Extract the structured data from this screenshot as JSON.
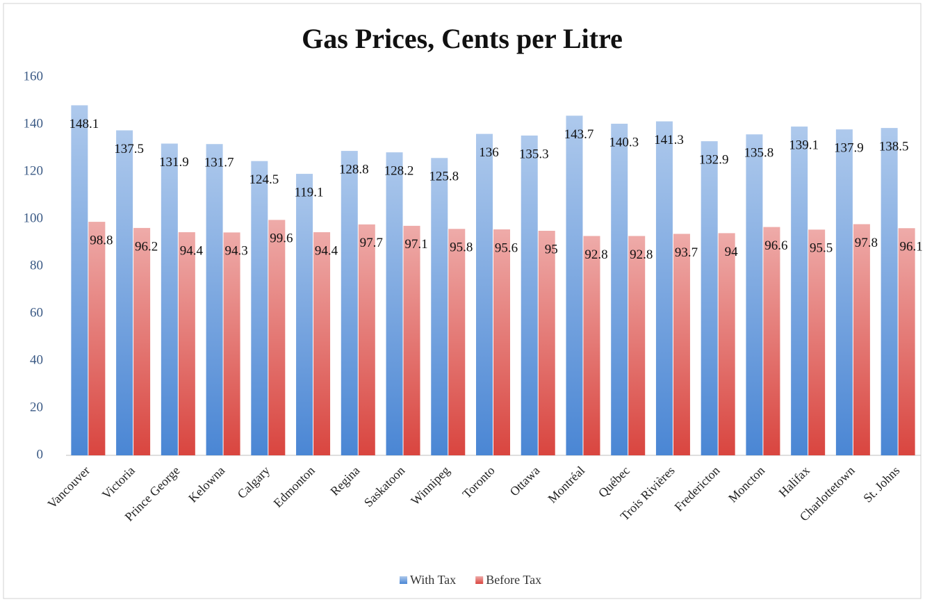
{
  "chart_data": {
    "type": "bar",
    "title": "Gas Prices, Cents per Litre",
    "categories": [
      "Vancouver",
      "Victoria",
      "Prince George",
      "Kelowna",
      "Calgary",
      "Edmonton",
      "Regina",
      "Saskatoon",
      "Winnipeg",
      "Toronto",
      "Ottawa",
      "Montréal",
      "Québec",
      "Trois Rivières",
      "Fredericton",
      "Moncton",
      "Halifax",
      "Charlottetown",
      "St. Johns"
    ],
    "series": [
      {
        "name": "With Tax",
        "color": "#4a86d4",
        "values": [
          148.1,
          137.5,
          131.9,
          131.7,
          124.5,
          119.1,
          128.8,
          128.2,
          125.8,
          136,
          135.3,
          143.7,
          140.3,
          141.3,
          132.9,
          135.8,
          139.1,
          137.9,
          138.5
        ]
      },
      {
        "name": "Before Tax",
        "color": "#d9453f",
        "values": [
          98.8,
          96.2,
          94.4,
          94.3,
          99.6,
          94.4,
          97.7,
          97.1,
          95.8,
          95.6,
          95,
          92.8,
          92.8,
          93.7,
          94,
          96.6,
          95.5,
          97.8,
          96.1
        ]
      }
    ],
    "ylim": [
      0,
      160
    ],
    "yticks": [
      0,
      20,
      40,
      60,
      80,
      100,
      120,
      140,
      160
    ],
    "legend": "bottom"
  }
}
